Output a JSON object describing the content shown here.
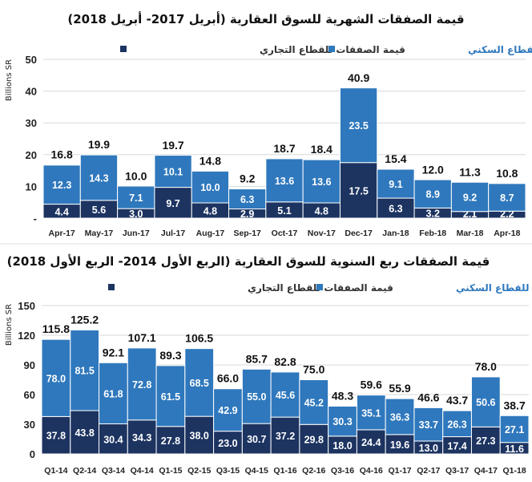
{
  "chart_data": [
    {
      "type": "bar",
      "stacked": true,
      "title": "قيمة الصفقات الشهرية للسوق العقارية (أبريل 2017- أبريل 2018)",
      "ylabel": "Billions SR",
      "ylim": [
        0,
        50
      ],
      "yticks": [
        "-",
        "10",
        "20",
        "30",
        "40",
        "50"
      ],
      "grid": true,
      "legend_position": "top",
      "categories": [
        "Apr-17",
        "May-17",
        "Jun-17",
        "Jul-17",
        "Aug-17",
        "Sep-17",
        "Oct-17",
        "Nov-17",
        "Dec-17",
        "Jan-18",
        "Feb-18",
        "Mar-18",
        "Apr-18"
      ],
      "series": [
        {
          "name": "قيمة الصفقات للقطاع التجاري",
          "color": "#1d3461",
          "values": [
            4.4,
            5.6,
            3.0,
            9.7,
            4.8,
            2.9,
            5.1,
            4.8,
            17.5,
            6.3,
            3.2,
            2.1,
            2.2
          ]
        },
        {
          "name": "قيمة الصفقات للقطاع السكني",
          "color": "#2f78bd",
          "values": [
            12.3,
            14.3,
            7.1,
            10.1,
            10.0,
            6.3,
            13.6,
            13.6,
            23.5,
            9.1,
            8.9,
            9.2,
            8.7
          ]
        }
      ],
      "totals": [
        16.8,
        19.9,
        10.0,
        19.7,
        14.8,
        9.2,
        18.7,
        18.4,
        40.9,
        15.4,
        12.0,
        11.3,
        10.8
      ]
    },
    {
      "type": "bar",
      "stacked": true,
      "title": "قيمة الصفقات ربع السنوية للسوق العقارية (الربع الأول 2014- الربع الأول 2018)",
      "ylabel": "Billions SR",
      "ylim": [
        0,
        150
      ],
      "yticks": [
        "0",
        "30",
        "60",
        "90",
        "120",
        "150"
      ],
      "grid": true,
      "legend_position": "top",
      "categories": [
        "Q1-14",
        "Q2-14",
        "Q3-14",
        "Q4-14",
        "Q1-15",
        "Q2-15",
        "Q3-15",
        "Q4-15",
        "Q1-16",
        "Q2-16",
        "Q3-16",
        "Q4-16",
        "Q1-17",
        "Q2-17",
        "Q3-17",
        "Q4-17",
        "Q1-18"
      ],
      "series": [
        {
          "name": "قيمة الصفقات للقطاع التجاري",
          "color": "#1d3461",
          "values": [
            37.8,
            43.8,
            30.4,
            34.3,
            27.8,
            38.0,
            23.0,
            30.7,
            37.2,
            29.8,
            18.0,
            24.4,
            19.6,
            13.0,
            17.4,
            27.3,
            11.6
          ]
        },
        {
          "name": "قيمة الصفقات للقطاع السكني",
          "color": "#2f78bd",
          "values": [
            78.0,
            81.5,
            61.8,
            72.8,
            61.5,
            68.5,
            42.9,
            55.0,
            45.6,
            45.2,
            30.3,
            35.1,
            36.3,
            33.7,
            26.3,
            50.6,
            27.1
          ]
        }
      ],
      "totals": [
        115.8,
        125.2,
        92.1,
        107.1,
        89.3,
        106.5,
        66.0,
        85.7,
        82.8,
        75.0,
        48.3,
        59.6,
        55.9,
        46.6,
        43.7,
        78.0,
        38.7
      ]
    }
  ]
}
